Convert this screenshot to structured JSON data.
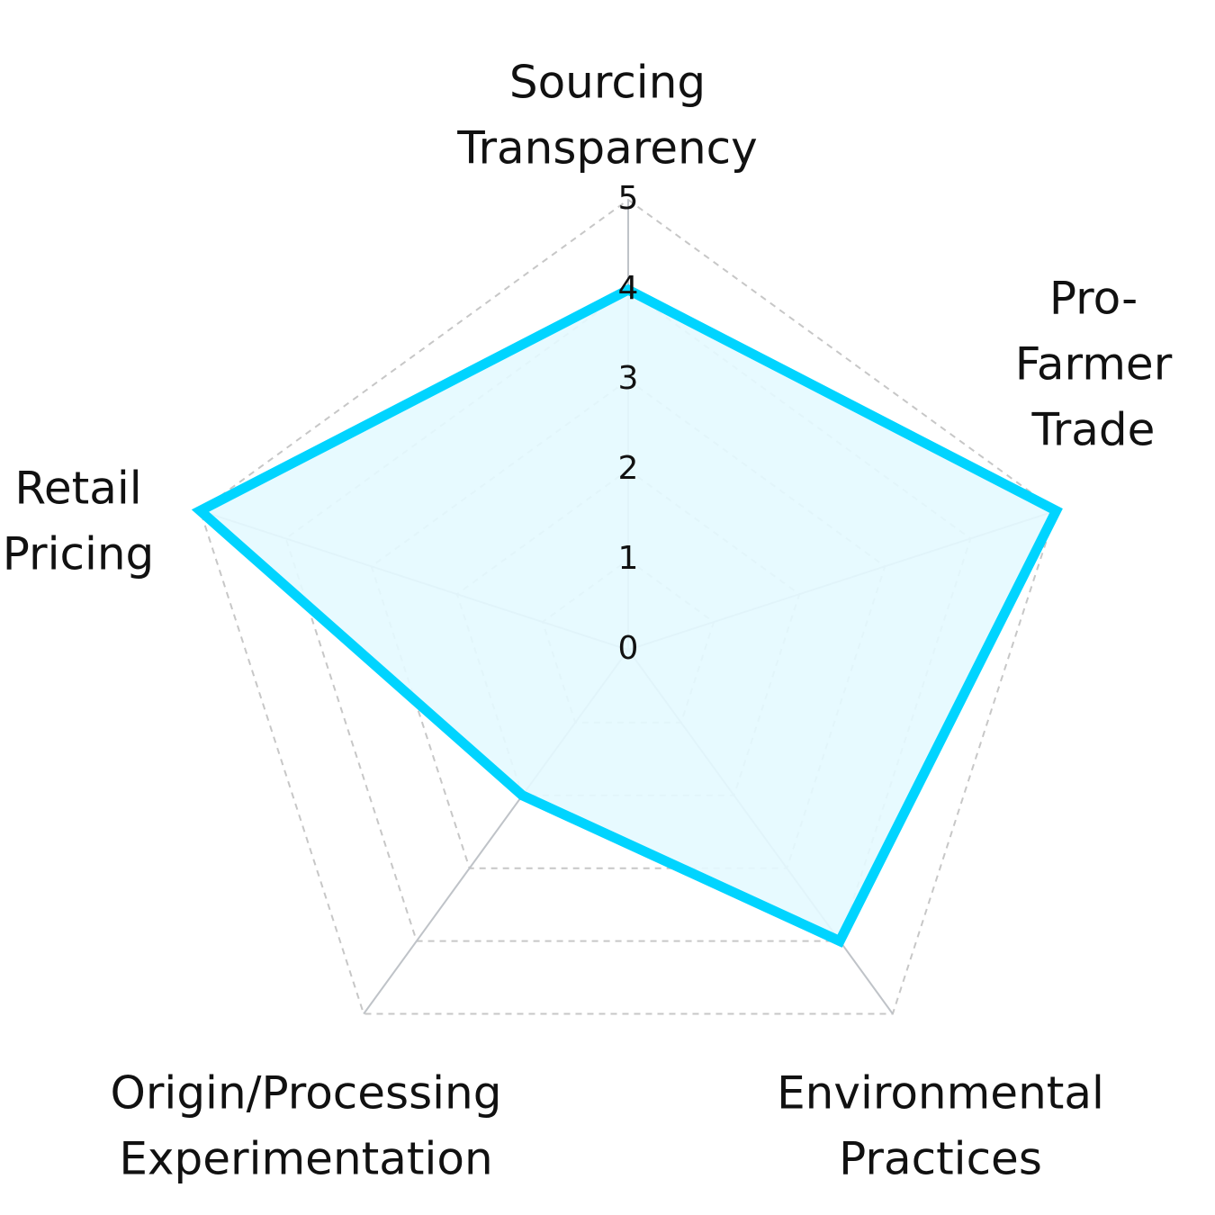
{
  "chart_data": {
    "type": "radar",
    "title": "",
    "axes": [
      "Sourcing Transparency",
      "Pro-Farmer Trade",
      "Environmental Practices",
      "Origin/Processing Experimentation",
      "Retail Pricing"
    ],
    "axis_label_lines": [
      [
        "Sourcing",
        "Transparency"
      ],
      [
        "Pro-",
        "Farmer",
        "Trade"
      ],
      [
        "Environmental",
        "Practices"
      ],
      [
        "Origin/Processing",
        "Experimentation"
      ],
      [
        "Retail",
        "Pricing"
      ]
    ],
    "ticks": [
      "0",
      "1",
      "2",
      "3",
      "4",
      "5"
    ],
    "range": [
      0,
      5
    ],
    "grid": true,
    "legend": "none",
    "series": [
      {
        "values": [
          4,
          5,
          4,
          2,
          5
        ],
        "stroke_color": "#00d4ff",
        "fill_color": "#e4f9ff"
      }
    ],
    "colors": {
      "grid": "#c7c7c7",
      "spoke": "#bfc3c8",
      "text": "#111111"
    }
  }
}
